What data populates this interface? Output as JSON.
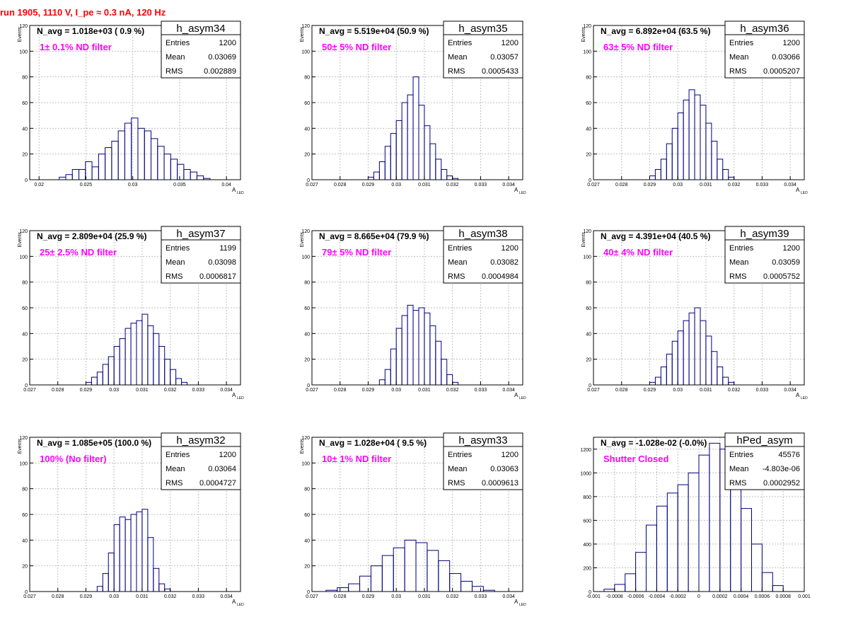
{
  "header": {
    "title": "run 1905,  1110 V, I_pe ≈ 0.3 nA, 120 Hz"
  },
  "colors": {
    "title": "#ff0000",
    "filter_label": "#ff00ff",
    "histogram": "#000080",
    "grid": "#c0c0c0"
  },
  "chart_data": [
    {
      "type": "bar",
      "name": "h_asym34",
      "stats": {
        "entries": "1200",
        "mean": "0.03069",
        "rms": "0.002889"
      },
      "navg": "N_avg = 1.018e+03 ( 0.9 %)",
      "label": "1± 0.1% ND filter",
      "ylabel": "Events",
      "xlabel": "A",
      "xlabel_sub": "LED",
      "xlim": [
        0.019,
        0.0415
      ],
      "ylim": [
        0,
        120
      ],
      "xticks": [
        0.02,
        0.025,
        0.03,
        0.035,
        0.04
      ],
      "xtick_labels": [
        "0.02",
        "0.025",
        "0.03",
        "0.035",
        "0.04"
      ],
      "yticks": [
        0,
        20,
        40,
        60,
        80,
        100,
        120
      ],
      "yticklabels": [
        "0",
        "20",
        "40",
        "60",
        "80",
        "100",
        "120"
      ],
      "grid": true,
      "legend": "top-right",
      "x": [
        0.0225,
        0.0232,
        0.0239,
        0.0246,
        0.0253,
        0.026,
        0.0267,
        0.0274,
        0.0281,
        0.0288,
        0.0295,
        0.0302,
        0.0309,
        0.0316,
        0.0323,
        0.033,
        0.0337,
        0.0344,
        0.0351,
        0.0358,
        0.0365,
        0.0372,
        0.0379,
        0.0386
      ],
      "values": [
        2,
        4,
        8,
        8,
        14,
        10,
        20,
        25,
        30,
        38,
        44,
        48,
        40,
        38,
        32,
        26,
        20,
        16,
        12,
        8,
        6,
        3,
        1,
        0
      ]
    },
    {
      "type": "bar",
      "name": "h_asym35",
      "stats": {
        "entries": "1200",
        "mean": "0.03057",
        "rms": "0.0005433"
      },
      "navg": "N_avg = 5.519e+04 (50.9 %)",
      "label": "50± 5% ND filter",
      "ylabel": "Events",
      "xlabel": "A",
      "xlabel_sub": "LED",
      "xlim": [
        0.027,
        0.0345
      ],
      "ylim": [
        0,
        120
      ],
      "xticks": [
        0.027,
        0.028,
        0.029,
        0.03,
        0.031,
        0.032,
        0.033,
        0.034
      ],
      "xtick_labels": [
        "0.027",
        "0.028",
        "0.029",
        "0.03",
        "0.031",
        "0.032",
        "0.033",
        "0.034"
      ],
      "yticks": [
        0,
        20,
        40,
        60,
        80,
        100,
        120
      ],
      "yticklabels": [
        "0",
        "20",
        "40",
        "60",
        "80",
        "100",
        "120"
      ],
      "grid": true,
      "legend": "top-right",
      "x": [
        0.0291,
        0.0293,
        0.0295,
        0.0297,
        0.0299,
        0.0301,
        0.0303,
        0.0305,
        0.0307,
        0.0309,
        0.0311,
        0.0313,
        0.0315,
        0.0317,
        0.0319,
        0.0321
      ],
      "values": [
        2,
        6,
        14,
        26,
        36,
        46,
        60,
        66,
        80,
        58,
        42,
        28,
        16,
        8,
        3,
        1
      ]
    },
    {
      "type": "bar",
      "name": "h_asym36",
      "stats": {
        "entries": "1200",
        "mean": "0.03066",
        "rms": "0.0005207"
      },
      "navg": "N_avg = 6.892e+04 (63.5 %)",
      "label": "63± 5% ND filter",
      "ylabel": "Events",
      "xlabel": "A",
      "xlabel_sub": "LED",
      "xlim": [
        0.027,
        0.0345
      ],
      "ylim": [
        0,
        120
      ],
      "xticks": [
        0.027,
        0.028,
        0.029,
        0.03,
        0.031,
        0.032,
        0.033,
        0.034
      ],
      "xtick_labels": [
        "0.027",
        "0.028",
        "0.029",
        "0.03",
        "0.031",
        "0.032",
        "0.033",
        "0.034"
      ],
      "yticks": [
        0,
        20,
        40,
        60,
        80,
        100,
        120
      ],
      "yticklabels": [
        "0",
        "20",
        "40",
        "60",
        "80",
        "100",
        "120"
      ],
      "grid": true,
      "legend": "top-right",
      "x": [
        0.0291,
        0.0293,
        0.0295,
        0.0297,
        0.0299,
        0.0301,
        0.0303,
        0.0305,
        0.0307,
        0.0309,
        0.0311,
        0.0313,
        0.0315,
        0.0317,
        0.0319
      ],
      "values": [
        3,
        8,
        16,
        28,
        40,
        52,
        62,
        70,
        66,
        58,
        44,
        30,
        16,
        8,
        2
      ]
    },
    {
      "type": "bar",
      "name": "h_asym37",
      "stats": {
        "entries": "1199",
        "mean": "0.03098",
        "rms": "0.0006817"
      },
      "navg": "N_avg = 2.809e+04 (25.9 %)",
      "label": "25± 2.5% ND filter",
      "ylabel": "Events",
      "xlabel": "A",
      "xlabel_sub": "LED",
      "xlim": [
        0.027,
        0.0345
      ],
      "ylim": [
        0,
        120
      ],
      "xticks": [
        0.027,
        0.028,
        0.029,
        0.03,
        0.031,
        0.032,
        0.033,
        0.034
      ],
      "xtick_labels": [
        "0.027",
        "0.028",
        "0.029",
        "0.03",
        "0.031",
        "0.032",
        "0.033",
        "0.034"
      ],
      "yticks": [
        0,
        20,
        40,
        60,
        80,
        100,
        120
      ],
      "yticklabels": [
        "0",
        "20",
        "40",
        "60",
        "80",
        "100",
        "120"
      ],
      "grid": true,
      "legend": "top-right",
      "x": [
        0.0291,
        0.0293,
        0.0295,
        0.0297,
        0.0299,
        0.0301,
        0.0303,
        0.0305,
        0.0307,
        0.0309,
        0.0311,
        0.0313,
        0.0315,
        0.0317,
        0.0319,
        0.0321,
        0.0323,
        0.0325
      ],
      "values": [
        2,
        6,
        10,
        16,
        22,
        30,
        36,
        44,
        48,
        50,
        55,
        46,
        40,
        30,
        20,
        12,
        5,
        2
      ]
    },
    {
      "type": "bar",
      "name": "h_asym38",
      "stats": {
        "entries": "1200",
        "mean": "0.03082",
        "rms": "0.0004984"
      },
      "navg": "N_avg = 8.665e+04 (79.9 %)",
      "label": "79± 5% ND filter",
      "ylabel": "Events",
      "xlabel": "A",
      "xlabel_sub": "LED",
      "xlim": [
        0.027,
        0.0345
      ],
      "ylim": [
        0,
        120
      ],
      "xticks": [
        0.027,
        0.028,
        0.029,
        0.03,
        0.031,
        0.032,
        0.033,
        0.034
      ],
      "xtick_labels": [
        "0.027",
        "0.028",
        "0.029",
        "0.03",
        "0.031",
        "0.032",
        "0.033",
        "0.034"
      ],
      "yticks": [
        0,
        20,
        40,
        60,
        80,
        100,
        120
      ],
      "yticklabels": [
        "0",
        "20",
        "40",
        "60",
        "80",
        "100",
        "120"
      ],
      "grid": true,
      "legend": "top-right",
      "x": [
        0.0295,
        0.0297,
        0.0299,
        0.0301,
        0.0303,
        0.0305,
        0.0307,
        0.0309,
        0.0311,
        0.0313,
        0.0315,
        0.0317,
        0.0319,
        0.0321
      ],
      "values": [
        4,
        12,
        28,
        44,
        54,
        62,
        58,
        60,
        56,
        46,
        34,
        20,
        8,
        2
      ]
    },
    {
      "type": "bar",
      "name": "h_asym39",
      "stats": {
        "entries": "1200",
        "mean": "0.03059",
        "rms": "0.0005752"
      },
      "navg": "N_avg = 4.391e+04 (40.5 %)",
      "label": "40± 4% ND filter",
      "ylabel": "Events",
      "xlabel": "A",
      "xlabel_sub": "LED",
      "xlim": [
        0.027,
        0.0345
      ],
      "ylim": [
        0,
        120
      ],
      "xticks": [
        0.027,
        0.028,
        0.029,
        0.03,
        0.031,
        0.032,
        0.033,
        0.034
      ],
      "xtick_labels": [
        "0.027",
        "0.028",
        "0.029",
        "0.03",
        "0.031",
        "0.032",
        "0.033",
        "0.034"
      ],
      "yticks": [
        0,
        20,
        40,
        60,
        80,
        100,
        120
      ],
      "yticklabels": [
        "0",
        "20",
        "40",
        "60",
        "80",
        "100",
        "120"
      ],
      "grid": true,
      "legend": "top-right",
      "x": [
        0.0291,
        0.0293,
        0.0295,
        0.0297,
        0.0299,
        0.0301,
        0.0303,
        0.0305,
        0.0307,
        0.0309,
        0.0311,
        0.0313,
        0.0315,
        0.0317,
        0.0319
      ],
      "values": [
        2,
        6,
        14,
        24,
        34,
        42,
        50,
        56,
        60,
        50,
        38,
        26,
        14,
        6,
        2
      ]
    },
    {
      "type": "bar",
      "name": "h_asym32",
      "stats": {
        "entries": "1200",
        "mean": "0.03064",
        "rms": "0.0004727"
      },
      "navg": "N_avg = 1.085e+05 (100.0 %)",
      "label": "100% (No filter)",
      "ylabel": "Events",
      "xlabel": "A",
      "xlabel_sub": "LED",
      "xlim": [
        0.027,
        0.0345
      ],
      "ylim": [
        0,
        120
      ],
      "xticks": [
        0.027,
        0.028,
        0.029,
        0.03,
        0.031,
        0.032,
        0.033,
        0.034
      ],
      "xtick_labels": [
        "0.027",
        "0.028",
        "0.029",
        "0.03",
        "0.031",
        "0.032",
        "0.033",
        "0.034"
      ],
      "yticks": [
        0,
        20,
        40,
        60,
        80,
        100,
        120
      ],
      "yticklabels": [
        "0",
        "20",
        "40",
        "60",
        "80",
        "100",
        "120"
      ],
      "grid": true,
      "legend": "top-right",
      "x": [
        0.0295,
        0.0297,
        0.0299,
        0.0301,
        0.0303,
        0.0305,
        0.0307,
        0.0309,
        0.0311,
        0.0313,
        0.0315,
        0.0317,
        0.0319
      ],
      "values": [
        4,
        14,
        30,
        52,
        58,
        56,
        60,
        62,
        64,
        42,
        18,
        6,
        2
      ]
    },
    {
      "type": "bar",
      "name": "h_asym33",
      "stats": {
        "entries": "1200",
        "mean": "0.03063",
        "rms": "0.0009613"
      },
      "navg": "N_avg = 1.028e+04 ( 9.5 %)",
      "label": "10± 1% ND filter",
      "ylabel": "Events",
      "xlabel": "A",
      "xlabel_sub": "LED",
      "xlim": [
        0.027,
        0.0345
      ],
      "ylim": [
        0,
        120
      ],
      "xticks": [
        0.027,
        0.028,
        0.029,
        0.03,
        0.031,
        0.032,
        0.033,
        0.034
      ],
      "xtick_labels": [
        "0.027",
        "0.028",
        "0.029",
        "0.03",
        "0.031",
        "0.032",
        "0.033",
        "0.034"
      ],
      "yticks": [
        0,
        20,
        40,
        60,
        80,
        100,
        120
      ],
      "yticklabels": [
        "0",
        "20",
        "40",
        "60",
        "80",
        "100",
        "120"
      ],
      "grid": true,
      "legend": "top-right",
      "x": [
        0.0277,
        0.0281,
        0.0285,
        0.0289,
        0.0293,
        0.0297,
        0.0301,
        0.0305,
        0.0309,
        0.0313,
        0.0317,
        0.0321,
        0.0325,
        0.0329,
        0.0333
      ],
      "values": [
        1,
        3,
        6,
        12,
        20,
        28,
        34,
        40,
        38,
        32,
        24,
        14,
        8,
        4,
        1
      ]
    },
    {
      "type": "bar",
      "name": "hPed_asym",
      "stats": {
        "entries": "45576",
        "mean": "-4.803e-06",
        "rms": "0.0002952"
      },
      "navg": "N_avg = -1.028e-02 (-0.0%)",
      "label": "Shutter Closed",
      "ylabel": "",
      "xlabel": "",
      "xlabel_sub": "",
      "xlim": [
        -0.001,
        0.001
      ],
      "ylim": [
        0,
        1300
      ],
      "xticks": [
        -0.001,
        -0.0008,
        -0.0006,
        -0.0004,
        -0.0002,
        0,
        0.0002,
        0.0004,
        0.0006,
        0.0008,
        0.001
      ],
      "xtick_labels": [
        "-0.001",
        "-0.0008",
        "-0.0006",
        "-0.0004",
        "-0.0002",
        "0",
        "0.0002",
        "0.0004",
        "0.0006",
        "0.0008",
        "0.001"
      ],
      "yticks": [
        0,
        200,
        400,
        600,
        800,
        1000,
        1200
      ],
      "yticklabels": [
        "0",
        "200",
        "400",
        "600",
        "800",
        "1000",
        "1200"
      ],
      "grid": true,
      "legend": "top-right",
      "x": [
        -0.00085,
        -0.00075,
        -0.00065,
        -0.00055,
        -0.00045,
        -0.00035,
        -0.00025,
        -0.00015,
        -5e-05,
        5e-05,
        0.00015,
        0.00025,
        0.00035,
        0.00045,
        0.00055,
        0.00065,
        0.00075
      ],
      "values": [
        20,
        60,
        150,
        330,
        560,
        720,
        830,
        900,
        1000,
        1150,
        1250,
        1200,
        1000,
        700,
        400,
        160,
        50
      ]
    }
  ]
}
